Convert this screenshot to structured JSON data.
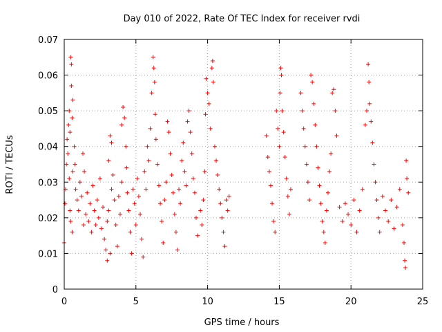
{
  "colors": {
    "points": "#ff0000",
    "grid": "#a0a0a0",
    "axes": "#000000"
  },
  "chart_data": {
    "type": "scatter",
    "title": "Day 010 of 2022, Rate Of TEC Index for receiver rvdi",
    "xlabel": "GPS time / hours",
    "ylabel": "ROTI / TECUs",
    "xlim": [
      0,
      25
    ],
    "ylim": [
      0,
      0.07
    ],
    "xticks": [
      0,
      5,
      10,
      15,
      20,
      25
    ],
    "yticks": [
      0,
      0.01,
      0.02,
      0.03,
      0.04,
      0.05,
      0.06,
      0.07
    ],
    "xtick_labels": [
      "0",
      "5",
      "10",
      "15",
      "20",
      "25"
    ],
    "ytick_labels": [
      "0",
      "0.01",
      "0.02",
      "0.03",
      "0.04",
      "0.05",
      "0.06",
      "0.07"
    ],
    "grid": true,
    "marker": "plus",
    "series": [
      {
        "points": [
          [
            0.0,
            0.013
          ],
          [
            0.05,
            0.024
          ],
          [
            0.1,
            0.028
          ],
          [
            0.15,
            0.035
          ],
          [
            0.2,
            0.042
          ],
          [
            0.25,
            0.038
          ],
          [
            0.3,
            0.046
          ],
          [
            0.35,
            0.05
          ],
          [
            0.4,
            0.044
          ],
          [
            0.45,
            0.065
          ],
          [
            0.5,
            0.063
          ],
          [
            0.5,
            0.057
          ],
          [
            0.55,
            0.048
          ],
          [
            0.6,
            0.053
          ],
          [
            0.35,
            0.031
          ],
          [
            0.4,
            0.022
          ],
          [
            0.45,
            0.019
          ],
          [
            0.55,
            0.016
          ],
          [
            0.6,
            0.033
          ],
          [
            0.7,
            0.04
          ],
          [
            0.75,
            0.035
          ],
          [
            0.8,
            0.028
          ],
          [
            0.9,
            0.025
          ],
          [
            1.0,
            0.022
          ],
          [
            1.1,
            0.03
          ],
          [
            1.2,
            0.026
          ],
          [
            1.3,
            0.038
          ],
          [
            1.35,
            0.018
          ],
          [
            1.4,
            0.033
          ],
          [
            1.5,
            0.021
          ],
          [
            1.6,
            0.027
          ],
          [
            1.7,
            0.019
          ],
          [
            1.8,
            0.024
          ],
          [
            1.9,
            0.016
          ],
          [
            2.0,
            0.029
          ],
          [
            2.1,
            0.022
          ],
          [
            2.2,
            0.018
          ],
          [
            2.3,
            0.025
          ],
          [
            2.4,
            0.02
          ],
          [
            2.5,
            0.031
          ],
          [
            2.6,
            0.017
          ],
          [
            2.7,
            0.023
          ],
          [
            2.8,
            0.014
          ],
          [
            2.9,
            0.011
          ],
          [
            3.0,
            0.008
          ],
          [
            3.0,
            0.019
          ],
          [
            3.1,
            0.022
          ],
          [
            3.2,
            0.01
          ],
          [
            3.3,
            0.028
          ],
          [
            3.1,
            0.036
          ],
          [
            3.2,
            0.043
          ],
          [
            3.3,
            0.041
          ],
          [
            3.4,
            0.032
          ],
          [
            3.5,
            0.025
          ],
          [
            3.6,
            0.018
          ],
          [
            3.7,
            0.012
          ],
          [
            3.8,
            0.026
          ],
          [
            3.9,
            0.021
          ],
          [
            4.0,
            0.03
          ],
          [
            4.0,
            0.046
          ],
          [
            4.1,
            0.051
          ],
          [
            4.2,
            0.048
          ],
          [
            4.3,
            0.04
          ],
          [
            4.35,
            0.034
          ],
          [
            4.4,
            0.027
          ],
          [
            4.5,
            0.022
          ],
          [
            4.6,
            0.016
          ],
          [
            4.7,
            0.01
          ],
          [
            4.8,
            0.028
          ],
          [
            4.9,
            0.024
          ],
          [
            5.0,
            0.018
          ],
          [
            5.1,
            0.031
          ],
          [
            5.2,
            0.026
          ],
          [
            5.3,
            0.021
          ],
          [
            5.4,
            0.014
          ],
          [
            5.5,
            0.009
          ],
          [
            5.6,
            0.033
          ],
          [
            5.7,
            0.028
          ],
          [
            5.8,
            0.04
          ],
          [
            5.9,
            0.036
          ],
          [
            6.0,
            0.045
          ],
          [
            6.1,
            0.055
          ],
          [
            6.2,
            0.065
          ],
          [
            6.25,
            0.062
          ],
          [
            6.3,
            0.058
          ],
          [
            6.35,
            0.049
          ],
          [
            6.4,
            0.042
          ],
          [
            6.5,
            0.035
          ],
          [
            6.6,
            0.029
          ],
          [
            6.7,
            0.024
          ],
          [
            6.8,
            0.019
          ],
          [
            6.9,
            0.013
          ],
          [
            7.0,
            0.025
          ],
          [
            7.1,
            0.03
          ],
          [
            7.2,
            0.047
          ],
          [
            7.3,
            0.044
          ],
          [
            7.4,
            0.038
          ],
          [
            7.5,
            0.032
          ],
          [
            7.6,
            0.027
          ],
          [
            7.7,
            0.021
          ],
          [
            7.8,
            0.016
          ],
          [
            7.9,
            0.011
          ],
          [
            8.0,
            0.028
          ],
          [
            8.1,
            0.024
          ],
          [
            8.2,
            0.036
          ],
          [
            8.3,
            0.041
          ],
          [
            8.4,
            0.033
          ],
          [
            8.5,
            0.029
          ],
          [
            8.6,
            0.047
          ],
          [
            8.7,
            0.05
          ],
          [
            8.8,
            0.044
          ],
          [
            8.9,
            0.038
          ],
          [
            9.0,
            0.031
          ],
          [
            9.1,
            0.027
          ],
          [
            9.2,
            0.02
          ],
          [
            9.3,
            0.015
          ],
          [
            9.5,
            0.022
          ],
          [
            9.6,
            0.018
          ],
          [
            9.7,
            0.025
          ],
          [
            9.8,
            0.033
          ],
          [
            9.85,
            0.049
          ],
          [
            9.9,
            0.059
          ],
          [
            10.0,
            0.055
          ],
          [
            10.1,
            0.052
          ],
          [
            10.2,
            0.045
          ],
          [
            10.3,
            0.062
          ],
          [
            10.35,
            0.064
          ],
          [
            10.4,
            0.058
          ],
          [
            10.5,
            0.04
          ],
          [
            10.6,
            0.036
          ],
          [
            10.7,
            0.032
          ],
          [
            10.8,
            0.028
          ],
          [
            10.9,
            0.024
          ],
          [
            11.0,
            0.02
          ],
          [
            11.1,
            0.016
          ],
          [
            11.2,
            0.012
          ],
          [
            11.3,
            0.025
          ],
          [
            11.4,
            0.022
          ],
          [
            11.5,
            0.026
          ],
          [
            14.1,
            0.043
          ],
          [
            14.2,
            0.037
          ],
          [
            14.3,
            0.033
          ],
          [
            14.4,
            0.029
          ],
          [
            14.5,
            0.024
          ],
          [
            14.6,
            0.019
          ],
          [
            14.7,
            0.016
          ],
          [
            14.8,
            0.05
          ],
          [
            14.9,
            0.045
          ],
          [
            15.0,
            0.04
          ],
          [
            15.05,
            0.055
          ],
          [
            15.1,
            0.062
          ],
          [
            15.15,
            0.06
          ],
          [
            15.2,
            0.05
          ],
          [
            15.3,
            0.044
          ],
          [
            15.4,
            0.037
          ],
          [
            15.5,
            0.031
          ],
          [
            15.6,
            0.026
          ],
          [
            15.7,
            0.021
          ],
          [
            15.8,
            0.028
          ],
          [
            16.5,
            0.055
          ],
          [
            16.6,
            0.05
          ],
          [
            16.7,
            0.045
          ],
          [
            16.8,
            0.04
          ],
          [
            16.9,
            0.035
          ],
          [
            17.0,
            0.03
          ],
          [
            17.1,
            0.025
          ],
          [
            17.2,
            0.06
          ],
          [
            17.3,
            0.058
          ],
          [
            17.4,
            0.052
          ],
          [
            17.5,
            0.046
          ],
          [
            17.6,
            0.04
          ],
          [
            17.7,
            0.034
          ],
          [
            17.8,
            0.029
          ],
          [
            17.9,
            0.024
          ],
          [
            18.0,
            0.019
          ],
          [
            18.1,
            0.016
          ],
          [
            18.2,
            0.013
          ],
          [
            18.3,
            0.022
          ],
          [
            18.4,
            0.027
          ],
          [
            18.5,
            0.033
          ],
          [
            18.6,
            0.038
          ],
          [
            18.7,
            0.055
          ],
          [
            18.8,
            0.056
          ],
          [
            18.9,
            0.05
          ],
          [
            19.0,
            0.043
          ],
          [
            19.2,
            0.023
          ],
          [
            19.4,
            0.019
          ],
          [
            19.6,
            0.024
          ],
          [
            19.8,
            0.021
          ],
          [
            20.0,
            0.018
          ],
          [
            20.2,
            0.025
          ],
          [
            20.4,
            0.016
          ],
          [
            20.6,
            0.022
          ],
          [
            20.8,
            0.028
          ],
          [
            21.0,
            0.046
          ],
          [
            21.1,
            0.05
          ],
          [
            21.2,
            0.063
          ],
          [
            21.25,
            0.058
          ],
          [
            21.3,
            0.052
          ],
          [
            21.4,
            0.047
          ],
          [
            21.5,
            0.041
          ],
          [
            21.6,
            0.035
          ],
          [
            21.7,
            0.03
          ],
          [
            21.8,
            0.025
          ],
          [
            21.9,
            0.02
          ],
          [
            22.0,
            0.016
          ],
          [
            22.2,
            0.026
          ],
          [
            22.4,
            0.022
          ],
          [
            22.6,
            0.019
          ],
          [
            22.8,
            0.025
          ],
          [
            23.0,
            0.017
          ],
          [
            23.2,
            0.023
          ],
          [
            23.4,
            0.028
          ],
          [
            23.6,
            0.018
          ],
          [
            23.7,
            0.013
          ],
          [
            23.75,
            0.008
          ],
          [
            23.8,
            0.006
          ],
          [
            23.85,
            0.036
          ],
          [
            23.9,
            0.031
          ],
          [
            24.0,
            0.027
          ]
        ]
      }
    ]
  }
}
